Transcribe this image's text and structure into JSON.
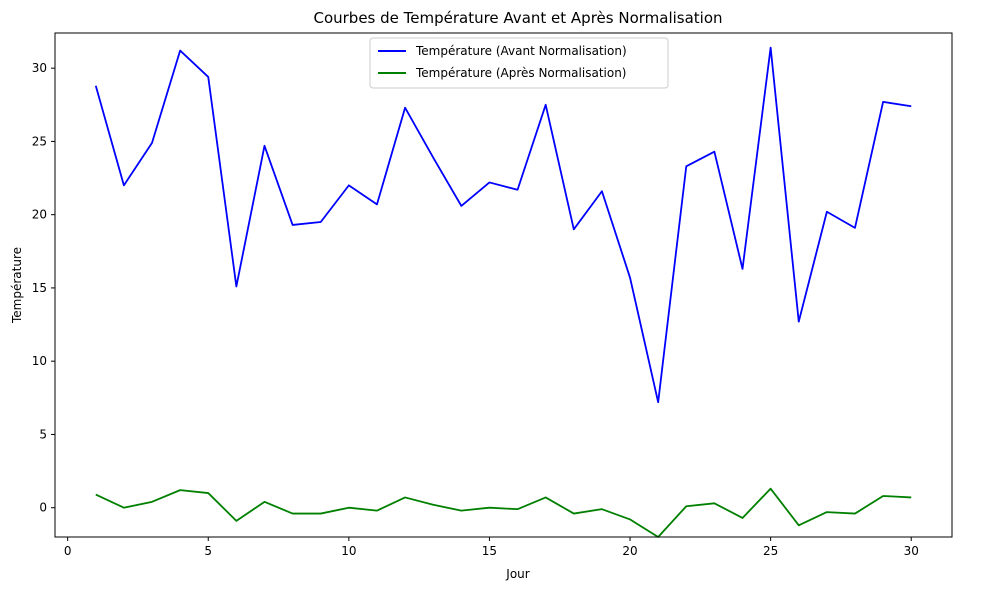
{
  "chart_data": {
    "type": "line",
    "title": "Courbes de Température Avant et Après Normalisation",
    "xlabel": "Jour",
    "ylabel": "Température",
    "xlim": [
      -0.45,
      31.45
    ],
    "ylim": [
      -2.0,
      32.4
    ],
    "xticks": [
      0,
      5,
      10,
      15,
      20,
      25,
      30
    ],
    "yticks": [
      0,
      5,
      10,
      15,
      20,
      25,
      30
    ],
    "xtick_labels": [
      "0",
      "5",
      "10",
      "15",
      "20",
      "25",
      "30"
    ],
    "ytick_labels": [
      "0",
      "5",
      "10",
      "15",
      "20",
      "25",
      "30"
    ],
    "grid": false,
    "legend_position": "top-center",
    "x": [
      1,
      2,
      3,
      4,
      5,
      6,
      7,
      8,
      9,
      10,
      11,
      12,
      13,
      14,
      15,
      16,
      17,
      18,
      19,
      20,
      21,
      22,
      23,
      24,
      25,
      26,
      27,
      28,
      29,
      30
    ],
    "series": [
      {
        "name": "Température (Avant Normalisation)",
        "color": "#0000ff",
        "values": [
          28.8,
          22.0,
          24.9,
          31.2,
          29.4,
          15.1,
          24.7,
          19.3,
          19.5,
          22.0,
          20.7,
          27.3,
          23.9,
          20.6,
          22.2,
          21.7,
          27.5,
          19.0,
          21.6,
          15.7,
          7.2,
          23.3,
          24.3,
          16.3,
          31.4,
          12.7,
          20.2,
          19.1,
          27.7,
          27.4
        ]
      },
      {
        "name": "Température (Après Normalisation)",
        "color": "#008000",
        "values": [
          0.9,
          0.0,
          0.4,
          1.2,
          1.0,
          -0.9,
          0.4,
          -0.4,
          -0.4,
          0.0,
          -0.2,
          0.7,
          0.2,
          -0.2,
          0.0,
          -0.1,
          0.7,
          -0.4,
          -0.1,
          -0.8,
          -2.0,
          0.1,
          0.3,
          -0.7,
          1.3,
          -1.2,
          -0.3,
          -0.4,
          0.8,
          0.7
        ]
      }
    ]
  }
}
